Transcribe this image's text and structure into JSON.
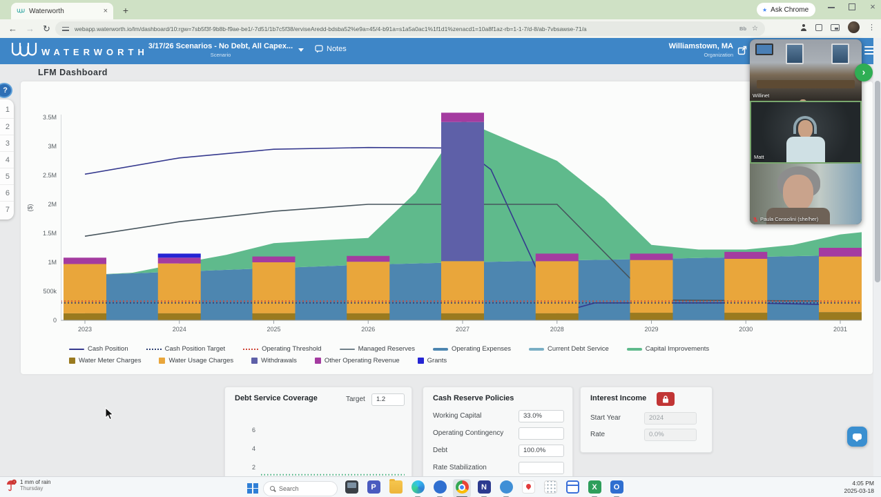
{
  "browser": {
    "tab_title": "Waterworth",
    "tab_close_glyph": "×",
    "new_tab_glyph": "+",
    "ask_chrome_label": "Ask Chrome",
    "ask_chrome_star": "★",
    "back_glyph": "←",
    "forward_glyph": "→",
    "refresh_glyph": "↻",
    "url": "webapp.waterworth.io/lm/dashboard/10:rgw=7sb5f3f-9b8b-f9ae-be1/-7d51/1b7c5f38/erviseAredd-bdsba52%e9a=45/4-b91a=s1a5a0ac1%1f1d1%zenacd1=10a8f1az-rb=1-1-7/d-8/ab-7vbsawse-71/a",
    "lens_glyph": "Bb",
    "bookmark_star_glyph": "☆",
    "menu_dots_glyph": "⋮",
    "window_close_glyph": "×"
  },
  "app_header": {
    "brand": "WATERWORTH",
    "scenario_title": "3/17/26 Scenarios - No Debt, All Capex...",
    "scenario_subtitle": "Scenario",
    "notes_label": "Notes",
    "org_name": "Williamstown, MA",
    "org_subtitle": "Organization"
  },
  "page": {
    "title": "LFM Dashboard"
  },
  "mini_nav": {
    "help_glyph": "?",
    "items": [
      "1",
      "2",
      "3",
      "4",
      "5",
      "6",
      "7"
    ]
  },
  "chart_data": {
    "type": "combo: stacked-bar + stacked-area + line",
    "title": "",
    "ylabel": "($)",
    "yticks": [
      {
        "label": "3.5M",
        "value_m": 3.5
      },
      {
        "label": "3M",
        "value_m": 3.0
      },
      {
        "label": "2.5M",
        "value_m": 2.5
      },
      {
        "label": "2M",
        "value_m": 2.0
      },
      {
        "label": "1.5M",
        "value_m": 1.5
      },
      {
        "label": "1M",
        "value_m": 1.0
      },
      {
        "label": "500k",
        "value_m": 0.5
      },
      {
        "label": "0",
        "value_m": 0
      }
    ],
    "ylim_m": [
      0,
      3.857
    ],
    "categories": [
      "2023",
      "2024",
      "2025",
      "2026",
      "2027",
      "2028",
      "2029",
      "2030",
      "2031"
    ],
    "bar_series": [
      {
        "name": "Water Meter Charges",
        "color": "#9a7a1f",
        "values_m": [
          0.12,
          0.12,
          0.12,
          0.12,
          0.12,
          0.12,
          0.13,
          0.13,
          0.14
        ]
      },
      {
        "name": "Water Usage Charges",
        "color": "#e9a63b",
        "values_m": [
          0.85,
          0.86,
          0.88,
          0.89,
          0.9,
          0.9,
          0.91,
          0.93,
          0.96
        ]
      },
      {
        "name": "Withdrawals",
        "color": "#5e60a8",
        "values_m": [
          0,
          0,
          0,
          0,
          2.4,
          0,
          0,
          0,
          0
        ]
      },
      {
        "name": "Other Operating Revenue",
        "color": "#a43ba0",
        "values_m": [
          0.11,
          0.1,
          0.1,
          0.1,
          0.16,
          0.13,
          0.11,
          0.12,
          0.15
        ]
      },
      {
        "name": "Grants",
        "color": "#2525d4",
        "values_m": [
          0,
          0.07,
          0,
          0,
          0,
          0,
          0,
          0,
          0
        ]
      }
    ],
    "area_series": [
      {
        "name": "Operating Expenses",
        "color": "#4d86b0",
        "top": [
          [
            2023,
            0.78
          ],
          [
            2024,
            0.84
          ],
          [
            2025,
            0.9
          ],
          [
            2026,
            0.96
          ],
          [
            2027,
            1.0
          ],
          [
            2028,
            1.03
          ],
          [
            2029,
            1.06
          ],
          [
            2030,
            1.09
          ],
          [
            2031,
            1.12
          ],
          [
            2031.23,
            1.2
          ]
        ],
        "base": [
          [
            2031.23,
            0
          ],
          [
            2023,
            0
          ]
        ]
      },
      {
        "name": "Capital Improvements",
        "color": "#5fba8c",
        "top": [
          [
            2023,
            0.78
          ],
          [
            2023.5,
            0.82
          ],
          [
            2024,
            0.98
          ],
          [
            2024.5,
            1.13
          ],
          [
            2025,
            1.33
          ],
          [
            2025.5,
            1.38
          ],
          [
            2026,
            1.42
          ],
          [
            2026.5,
            2.2
          ],
          [
            2027,
            3.45
          ],
          [
            2028,
            2.75
          ],
          [
            2028.5,
            2.1
          ],
          [
            2029,
            1.3
          ],
          [
            2029.5,
            1.22
          ],
          [
            2030,
            1.22
          ],
          [
            2030.5,
            1.3
          ],
          [
            2031,
            1.48
          ],
          [
            2031.23,
            1.52
          ]
        ],
        "base": [
          [
            2031.23,
            1.2
          ],
          [
            2031,
            1.12
          ],
          [
            2030,
            1.09
          ],
          [
            2029,
            1.06
          ],
          [
            2028,
            1.03
          ],
          [
            2027,
            1.0
          ],
          [
            2026,
            0.96
          ],
          [
            2025,
            0.9
          ],
          [
            2024,
            0.84
          ],
          [
            2023,
            0.78
          ]
        ]
      },
      {
        "name": "Current Debt Service",
        "color": "#79aec4",
        "top": [],
        "base": []
      }
    ],
    "line_series": [
      {
        "name": "Cash Position",
        "color": "#35398e",
        "width": 1.6,
        "points": [
          [
            2023,
            2.52
          ],
          [
            2024,
            2.8
          ],
          [
            2025,
            2.95
          ],
          [
            2026,
            2.98
          ],
          [
            2027,
            2.97
          ],
          [
            2027.3,
            2.6
          ],
          [
            2028,
            0.12
          ],
          [
            2028.4,
            0.3
          ],
          [
            2029,
            0.3
          ],
          [
            2030,
            0.3
          ],
          [
            2031.2,
            0.26
          ]
        ]
      },
      {
        "name": "Managed Reserves",
        "color": "#46545c",
        "width": 1.6,
        "points": [
          [
            2023,
            1.45
          ],
          [
            2024,
            1.7
          ],
          [
            2025,
            1.88
          ],
          [
            2026,
            2.0
          ],
          [
            2027,
            2.0
          ],
          [
            2028,
            2.0
          ],
          [
            2029,
            0.35
          ],
          [
            2030,
            0.34
          ],
          [
            2031.2,
            0.33
          ]
        ]
      }
    ],
    "dotted_series": [
      {
        "name": "Cash Position Target",
        "color": "#2c3e70",
        "value_m": 0.3
      },
      {
        "name": "Operating Threshold",
        "color": "#cf4436",
        "value_m": 0.33
      }
    ],
    "legend_rows": [
      [
        {
          "label": "Cash Position",
          "swatch": "line",
          "color": "#35398e"
        },
        {
          "label": "Cash Position Target",
          "swatch": "dotted",
          "color": "#2c3e70"
        },
        {
          "label": "Operating Threshold",
          "swatch": "dotted",
          "color": "#cf4436"
        },
        {
          "label": "Managed Reserves",
          "swatch": "line",
          "color": "#6f8089"
        },
        {
          "label": "Operating Expenses",
          "swatch": "thick",
          "color": "#4d86b0"
        },
        {
          "label": "Current Debt Service",
          "swatch": "thick",
          "color": "#79aec4"
        },
        {
          "label": "Capital Improvements",
          "swatch": "thick",
          "color": "#5fba8c"
        }
      ],
      [
        {
          "label": "Water Meter Charges",
          "swatch": "square",
          "color": "#9a7a1f"
        },
        {
          "label": "Water Usage Charges",
          "swatch": "square",
          "color": "#e9a63b"
        },
        {
          "label": "Withdrawals",
          "swatch": "square",
          "color": "#5e60a8"
        },
        {
          "label": "Other Operating Revenue",
          "swatch": "square",
          "color": "#a43ba0"
        },
        {
          "label": "Grants",
          "swatch": "square",
          "color": "#2525d4"
        }
      ]
    ]
  },
  "debt_service_panel": {
    "title": "Debt Service Coverage",
    "target_label": "Target",
    "target_value": "1.2",
    "chart": {
      "type": "line",
      "yticks": [
        "6",
        "4",
        "2"
      ],
      "ytick_values": [
        6,
        4,
        2
      ],
      "ylim": [
        0,
        7.4
      ],
      "target_line_value": 1.2,
      "target_line_color": "#3fae7a"
    }
  },
  "cash_reserve_panel": {
    "title": "Cash Reserve Policies",
    "rows": [
      {
        "label": "Working Capital",
        "value": "33.0%"
      },
      {
        "label": "Operating Contingency",
        "value": ""
      },
      {
        "label": "Debt",
        "value": "100.0%"
      },
      {
        "label": "Rate Stabilization",
        "value": ""
      }
    ]
  },
  "interest_income_panel": {
    "title": "Interest Income",
    "locked": true,
    "rows": [
      {
        "label": "Start Year",
        "value": "2024"
      },
      {
        "label": "Rate",
        "value": "0.0%"
      }
    ]
  },
  "video_call": {
    "participants": [
      {
        "name": "Willinet",
        "active": false,
        "muted": false
      },
      {
        "name": "Matt",
        "active": true,
        "muted": false
      },
      {
        "name": "Paula Consolini (she/her)",
        "active": false,
        "muted": true
      }
    ]
  },
  "fab": {
    "glyph": "›"
  },
  "taskbar": {
    "weather_primary": "1 mm of rain",
    "weather_secondary": "Thursday",
    "search_placeholder": "Search",
    "clock_time": "4:05 PM",
    "clock_date": "2025-03-18",
    "icons": [
      {
        "name": "file-explorer-icon",
        "style": "monitor",
        "running": false,
        "active": false
      },
      {
        "name": "photos-icon",
        "style": "letter",
        "letter": "P",
        "bg": "#4a5bbf",
        "running": false,
        "active": false
      },
      {
        "name": "folder-icon",
        "style": "folder",
        "running": false,
        "active": false
      },
      {
        "name": "edge-icon",
        "style": "edge",
        "running": true,
        "active": false
      },
      {
        "name": "teams-icon",
        "style": "letter-round",
        "letter": "",
        "bg": "#2f6fd0",
        "running": true,
        "active": false
      },
      {
        "name": "chrome-icon",
        "style": "chrome",
        "running": true,
        "active": true
      },
      {
        "name": "word-icon",
        "style": "letter",
        "letter": "N",
        "bg": "#2b3a8f",
        "running": true,
        "active": false
      },
      {
        "name": "skype-icon",
        "style": "letter-round",
        "letter": "",
        "bg": "#3f8fd6",
        "running": true,
        "active": false
      },
      {
        "name": "maps-pin-icon",
        "style": "pin",
        "running": false,
        "active": false
      },
      {
        "name": "calculator-icon",
        "style": "calc",
        "running": false,
        "active": false
      },
      {
        "name": "sheets-icon",
        "style": "sheet",
        "running": false,
        "active": false
      },
      {
        "name": "excel-icon",
        "style": "letter",
        "letter": "X",
        "bg": "#2e9e5b",
        "running": true,
        "active": false
      },
      {
        "name": "outlook-icon",
        "style": "letter",
        "letter": "O",
        "bg": "#2f6fd0",
        "running": true,
        "active": false
      }
    ]
  }
}
